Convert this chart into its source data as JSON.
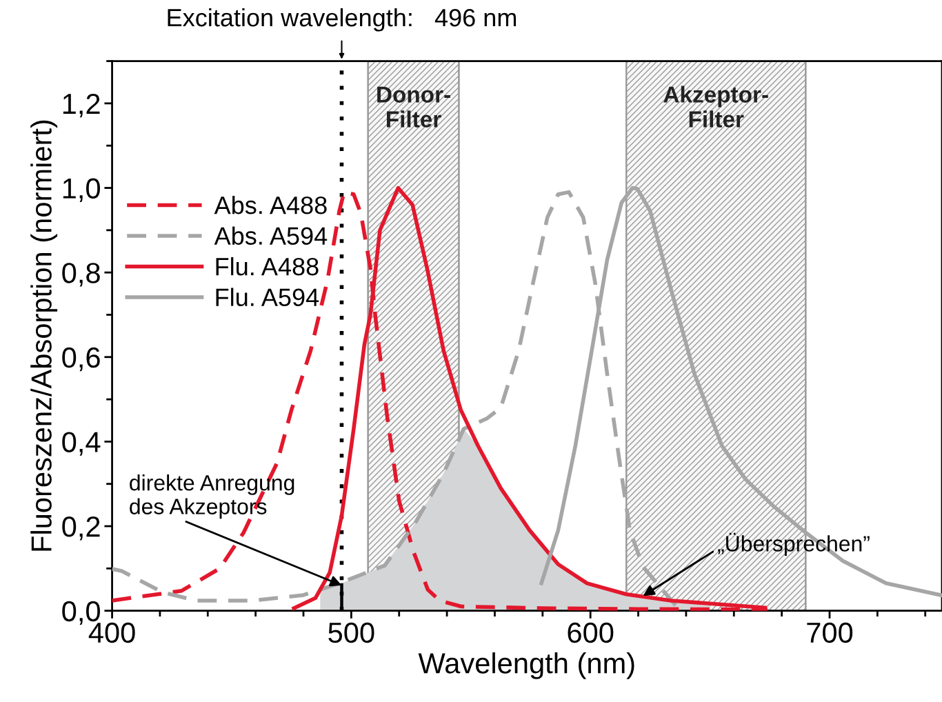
{
  "chart_data": {
    "type": "line",
    "xlabel": "Wavelength (nm)",
    "ylabel": "Fluoreszenz/Absorption (normiert)",
    "xlim": [
      400,
      747
    ],
    "xticks": [
      400,
      500,
      600,
      700
    ],
    "ylim": [
      0,
      1.3
    ],
    "yticks": [
      {
        "value": 0,
        "label": "0,0"
      },
      {
        "value": 0.2,
        "label": "0,2"
      },
      {
        "value": 0.4,
        "label": "0,4"
      },
      {
        "value": 0.6,
        "label": "0,6"
      },
      {
        "value": 0.8,
        "label": "0,8"
      },
      {
        "value": 1.0,
        "label": "1,0"
      },
      {
        "value": 1.2,
        "label": "1,2"
      }
    ],
    "grid": false,
    "legend": "left",
    "series": [
      {
        "name": "Abs. A488",
        "color": "#e3182d",
        "line_style": "dashed",
        "x": [
          400,
          429,
          445,
          455,
          469,
          475,
          483,
          490,
          495,
          497,
          501,
          504,
          508,
          510,
          515,
          520,
          526,
          532,
          537,
          546,
          580,
          620,
          674
        ],
        "values": [
          0.024,
          0.047,
          0.1,
          0.185,
          0.35,
          0.475,
          0.615,
          0.78,
          0.945,
          0.99,
          0.985,
          0.94,
          0.81,
          0.7,
          0.46,
          0.26,
          0.14,
          0.05,
          0.024,
          0.01,
          0.006,
          0.004,
          0.003
        ]
      },
      {
        "name": "Abs. A594",
        "color": "#a6a6a6",
        "line_style": "dashed",
        "x": [
          400,
          404,
          421,
          435,
          459,
          480,
          495,
          514,
          527,
          538.6,
          547,
          556.8,
          562.5,
          570,
          576,
          582,
          586.5,
          591,
          597,
          602,
          607,
          612,
          616.5,
          622,
          636
        ],
        "values": [
          0.099,
          0.094,
          0.044,
          0.024,
          0.024,
          0.037,
          0.065,
          0.107,
          0.21,
          0.325,
          0.43,
          0.455,
          0.48,
          0.615,
          0.775,
          0.93,
          0.985,
          0.99,
          0.93,
          0.775,
          0.56,
          0.36,
          0.19,
          0.104,
          0.01
        ]
      },
      {
        "name": "Flu. A488",
        "color": "#e3182d",
        "line_style": "solid",
        "x": [
          476,
          485,
          491,
          496,
          501,
          505.5,
          508,
          512,
          519.6,
          525.6,
          531.7,
          538.6,
          545.8,
          553,
          562.5,
          574.6,
          586.5,
          598.6,
          615,
          633.7,
          673
        ],
        "values": [
          0.006,
          0.03,
          0.09,
          0.225,
          0.43,
          0.63,
          0.7,
          0.9,
          1.0,
          0.96,
          0.81,
          0.615,
          0.475,
          0.39,
          0.29,
          0.19,
          0.11,
          0.065,
          0.039,
          0.024,
          0.007
        ]
      },
      {
        "name": "Flu. A594",
        "color": "#a6a6a6",
        "line_style": "solid",
        "x": [
          579.5,
          586.5,
          593.7,
          601,
          607,
          613,
          617.6,
          619.6,
          625,
          633.7,
          643.5,
          655,
          665,
          677,
          690,
          705.5,
          723.6,
          746.4
        ],
        "values": [
          0.065,
          0.19,
          0.39,
          0.63,
          0.83,
          0.965,
          1.0,
          0.998,
          0.945,
          0.76,
          0.56,
          0.39,
          0.31,
          0.245,
          0.185,
          0.118,
          0.065,
          0.037
        ]
      },
      {
        "type": "area",
        "color": "#d4d5d7",
        "x": [
          487,
          491,
          496,
          505,
          514,
          527,
          538.6,
          547,
          553,
          562.5,
          574.6,
          586.5,
          598.6,
          615,
          633.7,
          650
        ],
        "values": [
          0.045,
          0.055,
          0.065,
          0.085,
          0.107,
          0.21,
          0.325,
          0.43,
          0.39,
          0.29,
          0.19,
          0.11,
          0.065,
          0.039,
          0.024,
          0.015
        ]
      },
      {
        "type": "bar",
        "color": "#000000",
        "x": [
          496
        ],
        "values": [
          0.065
        ]
      }
    ],
    "ref_lines": [
      {
        "axis": "x",
        "value": 496,
        "label": "Excitation wavelength:   496 nm",
        "color": "#000000",
        "line_style": "dotted"
      }
    ],
    "bands": [
      {
        "axis": "x",
        "from": 507,
        "to": 545,
        "label": "Donor-\nFilter",
        "color": "#9a9a9a"
      },
      {
        "axis": "x",
        "from": 615,
        "to": 690,
        "label": "Akzeptor-\nFilter",
        "color": "#9a9a9a"
      }
    ],
    "annotations": [
      {
        "text": "direkte Anregung\ndes Akzeptors",
        "x": 496,
        "y": 0.06
      },
      {
        "text": "„Übersprechen”",
        "x": 622,
        "y": 0.035
      }
    ]
  }
}
